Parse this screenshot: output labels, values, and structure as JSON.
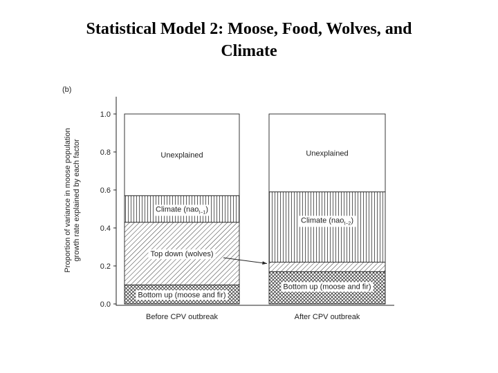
{
  "slide": {
    "title_line1": "Statistical Model 2: Moose, Food, Wolves, and",
    "title_line2": "Climate"
  },
  "chart_data": {
    "type": "bar",
    "stacked": true,
    "panel_label": "(b)",
    "ylabel_line1": "Proportion of variance in moose population",
    "ylabel_line2": "growth rate explained by each factor",
    "xlabel": "",
    "ylim": [
      0,
      1.0
    ],
    "yticks": [
      "0.0",
      "0.2",
      "0.4",
      "0.6",
      "0.8",
      "1.0"
    ],
    "categories": [
      "Before CPV outbreak",
      "After CPV outbreak"
    ],
    "series": [
      {
        "name": "Bottom up (moose and fir)",
        "values": [
          0.1,
          0.17
        ],
        "pattern": "crosshatch"
      },
      {
        "name": "Top down (wolves)",
        "values": [
          0.33,
          0.05
        ],
        "pattern": "diagonal"
      },
      {
        "name": "Climate (nao)",
        "values": [
          0.14,
          0.37
        ],
        "pattern": "vertical"
      },
      {
        "name": "Unexplained",
        "values": [
          0.43,
          0.41
        ],
        "pattern": "blank"
      }
    ],
    "labels": {
      "before": {
        "bottom": "Bottom up (moose and fir)",
        "top_down": "Top down (wolves)",
        "climate": "Climate (nao",
        "climate_sub": "t−1",
        "unexplained": "Unexplained"
      },
      "after": {
        "bottom": "Bottom up (moose and fir)",
        "climate": "Climate (nao",
        "climate_sub": "t−2",
        "unexplained": "Unexplained"
      }
    },
    "grid": false,
    "colors": {
      "ink": "#222222",
      "panel": "#ffffff"
    }
  }
}
